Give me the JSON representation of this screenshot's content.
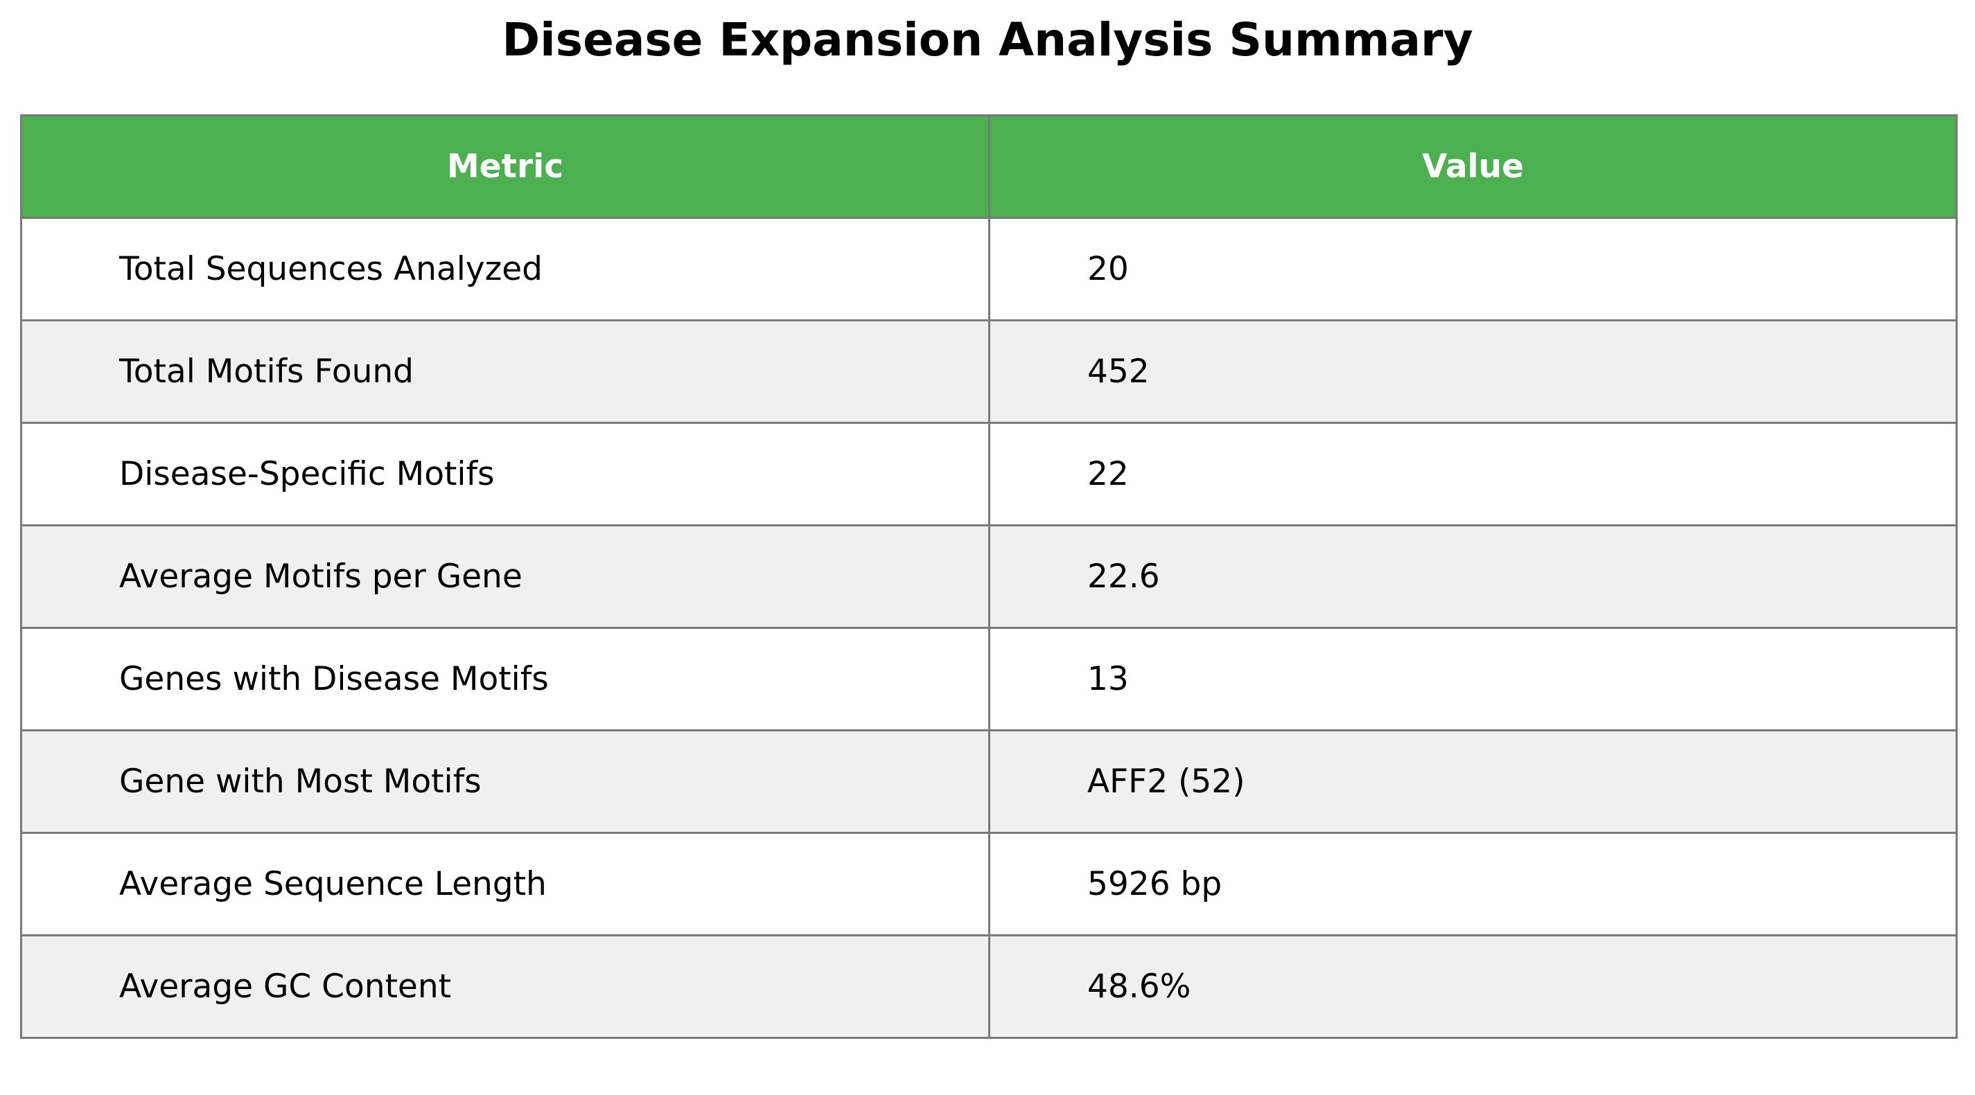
{
  "chart_data": {
    "type": "table",
    "title": "Disease Expansion Analysis Summary",
    "columns": [
      "Metric",
      "Value"
    ],
    "rows": [
      {
        "metric": "Total Sequences Analyzed",
        "value": "20"
      },
      {
        "metric": "Total Motifs Found",
        "value": "452"
      },
      {
        "metric": "Disease-Specific Motifs",
        "value": "22"
      },
      {
        "metric": "Average Motifs per Gene",
        "value": "22.6"
      },
      {
        "metric": "Genes with Disease Motifs",
        "value": "13"
      },
      {
        "metric": "Gene with Most Motifs",
        "value": "AFF2 (52)"
      },
      {
        "metric": "Average Sequence Length",
        "value": "5926 bp"
      },
      {
        "metric": "Average GC Content",
        "value": "48.6%"
      }
    ],
    "colors": {
      "header_bg": "#4caf50",
      "header_text": "#ffffff",
      "row_alt_bg": "#f0f0f0",
      "row_bg": "#ffffff",
      "border": "#7a7a7a"
    }
  }
}
